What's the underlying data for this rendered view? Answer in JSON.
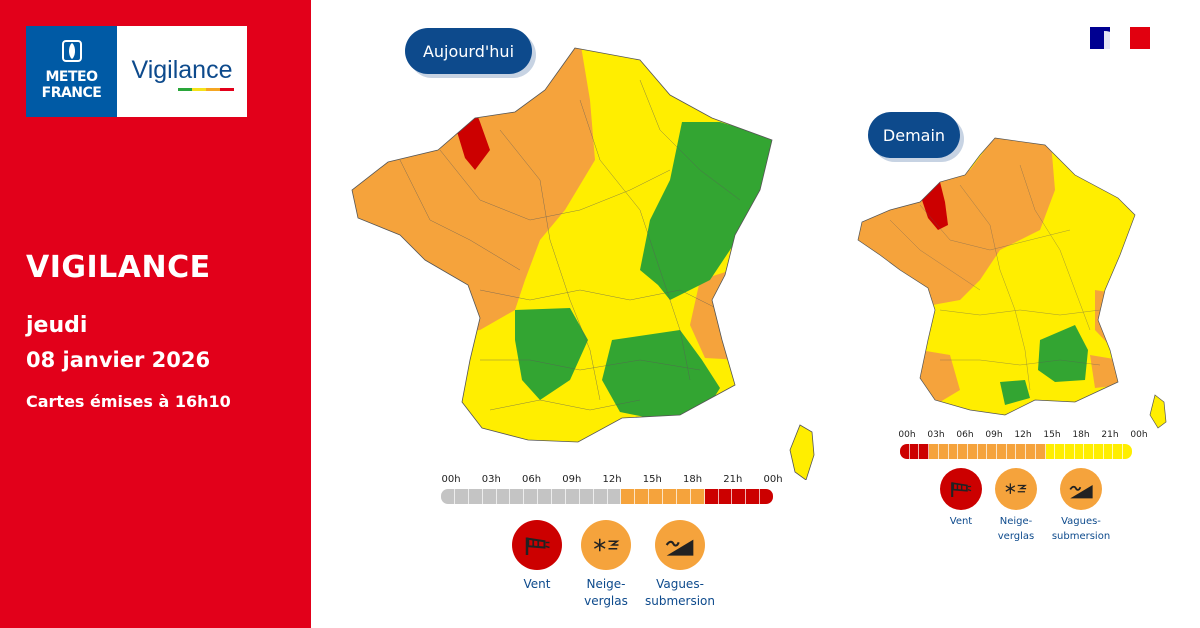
{
  "brand": {
    "mf_line1": "METEO",
    "mf_line2": "FRANCE",
    "product": "Vigilance",
    "vigilance_colors": [
      "#2aa63a",
      "#f5e21a",
      "#f5a623",
      "#e2001a"
    ]
  },
  "info": {
    "title": "VIGILANCE",
    "day": "jeudi",
    "date": "08 janvier 2026",
    "issued": "Cartes émises à 16h10"
  },
  "colors": {
    "red_panel": "#e2001a",
    "navy": "#0d4a8c",
    "level_green": "#33a532",
    "level_yellow": "#ffee00",
    "level_orange": "#f5a33c",
    "level_red": "#cc0000",
    "timeline_grey": "#c4c4c4"
  },
  "maps": [
    {
      "label": "Aujourd'hui",
      "timeline_labels": [
        "00h",
        "03h",
        "06h",
        "09h",
        "12h",
        "15h",
        "18h",
        "21h",
        "00h"
      ],
      "timeline_segments": [
        "grey",
        "grey",
        "grey",
        "grey",
        "grey",
        "grey",
        "grey",
        "grey",
        "grey",
        "grey",
        "grey",
        "grey",
        "grey",
        "grey",
        "grey",
        "grey",
        "grey",
        "grey",
        "grey",
        "grey",
        "grey",
        "grey",
        "grey",
        "grey",
        "grey",
        "grey",
        "grey",
        "grey",
        "grey",
        "grey",
        "grey",
        "grey",
        "grey",
        "grey",
        "grey",
        "grey",
        "grey",
        "grey",
        "grey",
        "grey",
        "grey",
        "grey",
        "grey",
        "grey",
        "grey",
        "grey",
        "grey",
        "grey",
        "grey",
        "grey",
        "grey",
        "grey",
        "grey",
        "grey",
        "grey",
        "grey",
        "grey",
        "grey",
        "grey",
        "grey",
        "grey",
        "grey",
        "grey",
        "grey",
        "grey",
        "grey",
        "grey",
        "grey",
        "grey",
        "grey",
        "grey",
        "grey",
        "orange",
        "orange",
        "orange",
        "orange",
        "orange",
        "orange",
        "orange",
        "orange",
        "orange",
        "orange",
        "orange",
        "orange",
        "orange",
        "orange",
        "orange",
        "orange",
        "orange",
        "orange",
        "orange",
        "orange",
        "orange",
        "orange",
        "orange",
        "orange",
        "orange",
        "orange",
        "orange",
        "orange",
        "orange",
        "orange",
        "orange",
        "orange",
        "orange",
        "orange",
        "red",
        "red",
        "red",
        "red",
        "red",
        "red",
        "red",
        "red",
        "red",
        "red",
        "red",
        "red",
        "red",
        "red",
        "red",
        "red",
        "red",
        "red",
        "red",
        "red",
        "red",
        "red",
        "red",
        "red",
        "red",
        "red"
      ],
      "hazards": [
        {
          "name": "Vent",
          "level": "red",
          "icon": "wind-icon"
        },
        {
          "name": "Neige-\nverglas",
          "level": "orange",
          "icon": "snow-ice-icon"
        },
        {
          "name": "Vagues-\nsubmersion",
          "level": "orange",
          "icon": "waves-icon"
        }
      ]
    },
    {
      "label": "Demain",
      "timeline_labels": [
        "00h",
        "03h",
        "06h",
        "09h",
        "12h",
        "15h",
        "18h",
        "21h",
        "00h"
      ],
      "timeline_segments": [
        "red",
        "red",
        "red",
        "red",
        "red",
        "red",
        "red",
        "red",
        "red",
        "red",
        "red",
        "red",
        "red",
        "red",
        "red",
        "red",
        "red",
        "red",
        "red",
        "red",
        "red",
        "red",
        "orange",
        "orange",
        "orange",
        "orange",
        "orange",
        "orange",
        "orange",
        "orange",
        "orange",
        "orange",
        "orange",
        "orange",
        "orange",
        "orange",
        "orange",
        "orange",
        "orange",
        "orange",
        "orange",
        "orange",
        "orange",
        "orange",
        "orange",
        "orange",
        "orange",
        "orange",
        "orange",
        "orange",
        "orange",
        "orange",
        "orange",
        "orange",
        "orange",
        "orange",
        "orange",
        "orange",
        "orange",
        "orange",
        "orange",
        "orange",
        "orange",
        "orange",
        "orange",
        "orange",
        "orange",
        "orange",
        "orange",
        "orange",
        "orange",
        "orange",
        "orange",
        "orange",
        "orange",
        "orange",
        "orange",
        "orange",
        "orange",
        "orange",
        "orange",
        "orange",
        "orange",
        "orange",
        "orange",
        "orange",
        "orange",
        "orange",
        "orange",
        "orange",
        "orange",
        "orange",
        "orange",
        "orange",
        "orange",
        "orange",
        "orange",
        "orange",
        "orange",
        "orange",
        "orange",
        "orange",
        "orange",
        "orange",
        "orange",
        "orange",
        "orange",
        "orange",
        "orange",
        "orange",
        "yellow",
        "yellow",
        "yellow",
        "yellow",
        "yellow",
        "yellow",
        "yellow",
        "yellow",
        "yellow",
        "yellow",
        "yellow",
        "yellow",
        "yellow",
        "yellow",
        "yellow",
        "yellow",
        "yellow",
        "yellow",
        "yellow",
        "yellow",
        "yellow",
        "yellow",
        "yellow",
        "yellow",
        "yellow",
        "yellow",
        "yellow",
        "yellow",
        "yellow",
        "yellow",
        "yellow",
        "yellow",
        "yellow",
        "yellow",
        "yellow",
        "yellow",
        "yellow",
        "yellow",
        "yellow",
        "yellow",
        "yellow",
        "yellow",
        "yellow",
        "yellow",
        "yellow",
        "yellow",
        "yellow",
        "yellow",
        "yellow",
        "yellow",
        "yellow",
        "yellow",
        "yellow",
        "yellow",
        "yellow",
        "yellow",
        "yellow",
        "yellow",
        "yellow",
        "yellow",
        "yellow",
        "yellow"
      ],
      "hazards": [
        {
          "name": "Vent",
          "level": "red",
          "icon": "wind-icon"
        },
        {
          "name": "Neige-\nverglas",
          "level": "orange",
          "icon": "snow-ice-icon"
        },
        {
          "name": "Vagues-\nsubmersion",
          "level": "orange",
          "icon": "waves-icon"
        }
      ]
    }
  ]
}
